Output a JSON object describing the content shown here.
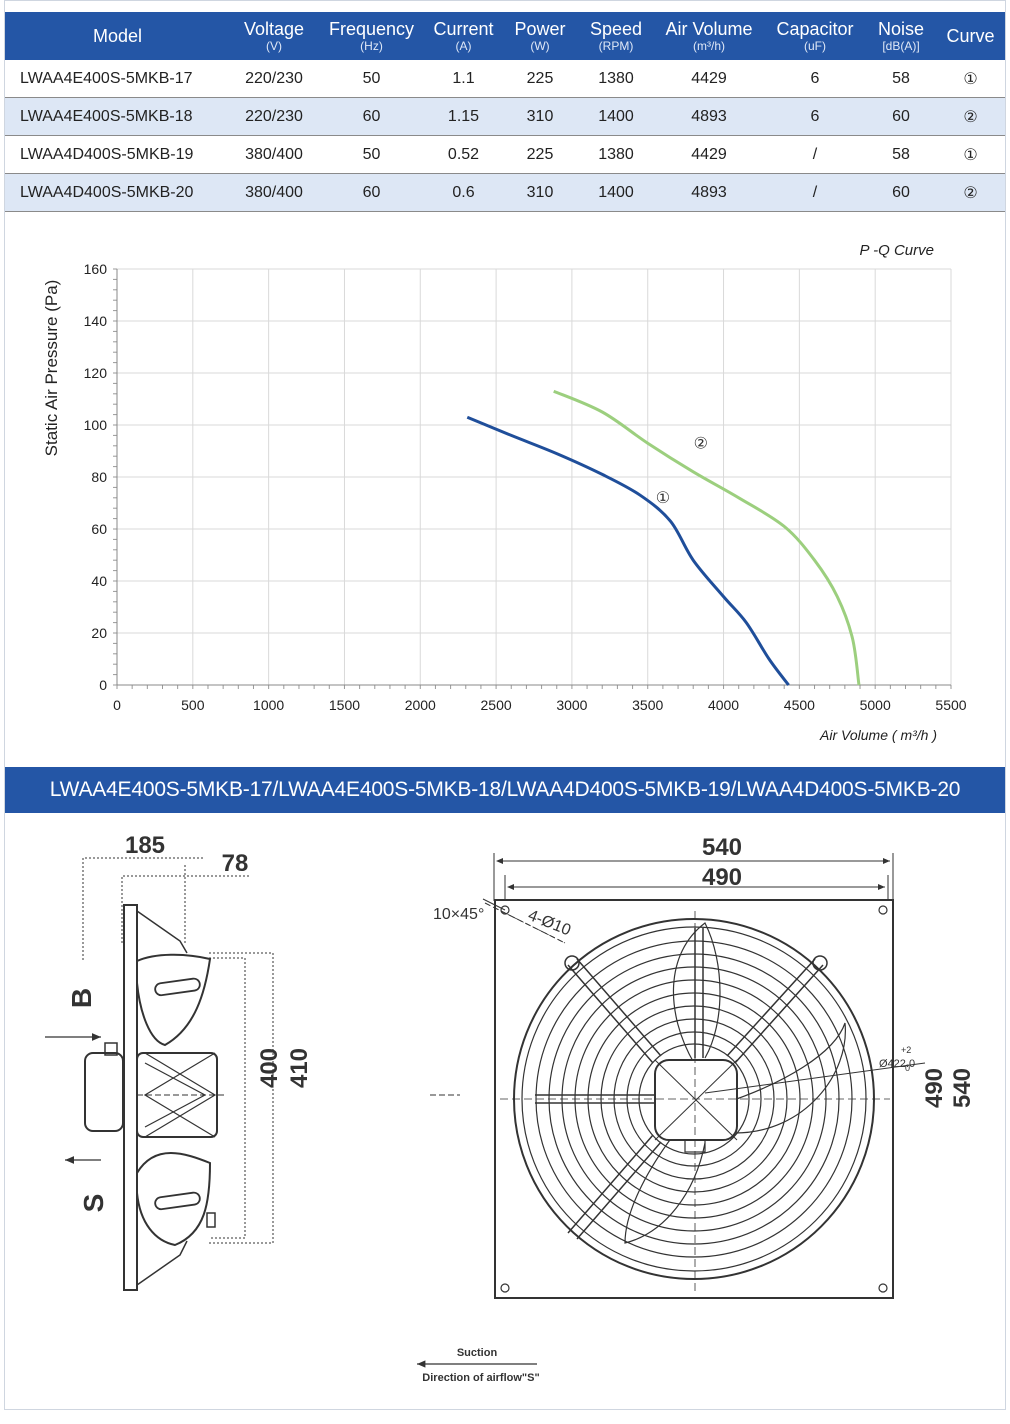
{
  "spec_table": {
    "headers": [
      {
        "label": "Model",
        "unit": ""
      },
      {
        "label": "Voltage",
        "unit": "(V)"
      },
      {
        "label": "Frequency",
        "unit": "(Hz)"
      },
      {
        "label": "Current",
        "unit": "(A)"
      },
      {
        "label": "Power",
        "unit": "(W)"
      },
      {
        "label": "Speed",
        "unit": "(RPM)"
      },
      {
        "label": "Air Volume",
        "unit": "(m³/h)"
      },
      {
        "label": "Capacitor",
        "unit": "(uF)"
      },
      {
        "label": "Noise",
        "unit": "[dB(A)]"
      },
      {
        "label": "Curve",
        "unit": ""
      }
    ],
    "rows": [
      [
        "LWAA4E400S-5MKB-17",
        "220/230",
        "50",
        "1.1",
        "225",
        "1380",
        "4429",
        "6",
        "58",
        "①"
      ],
      [
        "LWAA4E400S-5MKB-18",
        "220/230",
        "60",
        "1.15",
        "310",
        "1400",
        "4893",
        "6",
        "60",
        "②"
      ],
      [
        "LWAA4D400S-5MKB-19",
        "380/400",
        "50",
        "0.52",
        "225",
        "1380",
        "4429",
        "/",
        "58",
        "①"
      ],
      [
        "LWAA4D400S-5MKB-20",
        "380/400",
        "60",
        "0.6",
        "310",
        "1400",
        "4893",
        "/",
        "60",
        "②"
      ]
    ]
  },
  "chart_data": {
    "type": "line",
    "title": "P -Q Curve",
    "xlabel": "Air Volume ( m³/h )",
    "ylabel": "Static Air Pressure  (Pa)",
    "xlim": [
      0,
      5500
    ],
    "ylim": [
      0,
      160
    ],
    "xticks": [
      "0",
      "500",
      "1000",
      "1500",
      "2000",
      "2500",
      "3000",
      "3500",
      "4000",
      "4500",
      "5000",
      "5500"
    ],
    "yticks": [
      "0",
      "20",
      "40",
      "60",
      "80",
      "100",
      "120",
      "140",
      "160"
    ],
    "grid": true,
    "series": [
      {
        "name": "①",
        "color": "#1f4e9a",
        "points": [
          [
            2310,
            103
          ],
          [
            2600,
            96
          ],
          [
            2900,
            89
          ],
          [
            3200,
            81
          ],
          [
            3450,
            73
          ],
          [
            3650,
            63
          ],
          [
            3800,
            48
          ],
          [
            4000,
            34
          ],
          [
            4150,
            24
          ],
          [
            4300,
            10
          ],
          [
            4429,
            0
          ]
        ]
      },
      {
        "name": "②",
        "color": "#9ccf7e",
        "points": [
          [
            2880,
            113
          ],
          [
            3200,
            105
          ],
          [
            3500,
            93
          ],
          [
            3800,
            82
          ],
          [
            4100,
            72
          ],
          [
            4400,
            61
          ],
          [
            4600,
            48
          ],
          [
            4750,
            34
          ],
          [
            4850,
            18
          ],
          [
            4893,
            0
          ]
        ]
      }
    ]
  },
  "banner": {
    "text": "LWAA4E400S-5MKB-17/LWAA4E400S-5MKB-18/LWAA4D400S-5MKB-19/LWAA4D400S-5MKB-20"
  },
  "drawing": {
    "side": {
      "dim_a": "185",
      "dim_b": "78",
      "dim_c": "400",
      "dim_d": "410",
      "label_b": "B",
      "label_s": "S"
    },
    "front": {
      "dim_outer": "540",
      "dim_inner": "490",
      "chamfer": "10×45°",
      "holes": "4-Ø10",
      "ring": "Ø422.0",
      "ring_tol": "+2",
      "ring_tol2": "0",
      "right_a": "490",
      "right_b": "540"
    },
    "airflow": {
      "suction": "Suction",
      "direction": "Direction of airflow\"S\""
    }
  }
}
